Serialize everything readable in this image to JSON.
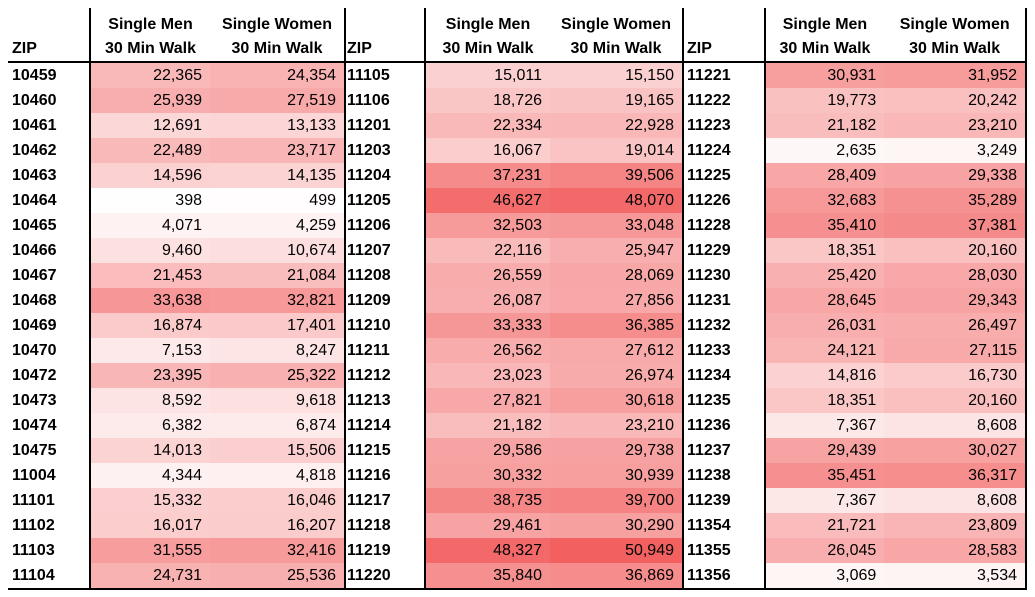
{
  "header": {
    "zip": "ZIP",
    "men_line1": "Single Men",
    "men_line2": "30 Min Walk",
    "women_line1": "Single Women",
    "women_line2": "30 Min Walk"
  },
  "colors": {
    "scale_low": "#ffffff",
    "scale_high": "#f26060"
  },
  "scale_max": 50949,
  "tables": [
    {
      "rows": [
        {
          "zip": "10459",
          "men": "22,365",
          "women": "24,354"
        },
        {
          "zip": "10460",
          "men": "25,939",
          "women": "27,519"
        },
        {
          "zip": "10461",
          "men": "12,691",
          "women": "13,133"
        },
        {
          "zip": "10462",
          "men": "22,489",
          "women": "23,717"
        },
        {
          "zip": "10463",
          "men": "14,596",
          "women": "14,135"
        },
        {
          "zip": "10464",
          "men": "398",
          "women": "499"
        },
        {
          "zip": "10465",
          "men": "4,071",
          "women": "4,259"
        },
        {
          "zip": "10466",
          "men": "9,460",
          "women": "10,674"
        },
        {
          "zip": "10467",
          "men": "21,453",
          "women": "21,084"
        },
        {
          "zip": "10468",
          "men": "33,638",
          "women": "32,821"
        },
        {
          "zip": "10469",
          "men": "16,874",
          "women": "17,401"
        },
        {
          "zip": "10470",
          "men": "7,153",
          "women": "8,247"
        },
        {
          "zip": "10472",
          "men": "23,395",
          "women": "25,322"
        },
        {
          "zip": "10473",
          "men": "8,592",
          "women": "9,618"
        },
        {
          "zip": "10474",
          "men": "6,382",
          "women": "6,874"
        },
        {
          "zip": "10475",
          "men": "14,013",
          "women": "15,506"
        },
        {
          "zip": "11004",
          "men": "4,344",
          "women": "4,818"
        },
        {
          "zip": "11101",
          "men": "15,332",
          "women": "16,046"
        },
        {
          "zip": "11102",
          "men": "16,017",
          "women": "16,207"
        },
        {
          "zip": "11103",
          "men": "31,555",
          "women": "32,416"
        },
        {
          "zip": "11104",
          "men": "24,731",
          "women": "25,536"
        }
      ]
    },
    {
      "rows": [
        {
          "zip": "11105",
          "men": "15,011",
          "women": "15,150"
        },
        {
          "zip": "11106",
          "men": "18,726",
          "women": "19,165"
        },
        {
          "zip": "11201",
          "men": "22,334",
          "women": "22,928"
        },
        {
          "zip": "11203",
          "men": "16,067",
          "women": "19,014"
        },
        {
          "zip": "11204",
          "men": "37,231",
          "women": "39,506"
        },
        {
          "zip": "11205",
          "men": "46,627",
          "women": "48,070"
        },
        {
          "zip": "11206",
          "men": "32,503",
          "women": "33,048"
        },
        {
          "zip": "11207",
          "men": "22,116",
          "women": "25,947"
        },
        {
          "zip": "11208",
          "men": "26,559",
          "women": "28,069"
        },
        {
          "zip": "11209",
          "men": "26,087",
          "women": "27,856"
        },
        {
          "zip": "11210",
          "men": "33,333",
          "women": "36,385"
        },
        {
          "zip": "11211",
          "men": "26,562",
          "women": "27,612"
        },
        {
          "zip": "11212",
          "men": "23,023",
          "women": "26,974"
        },
        {
          "zip": "11213",
          "men": "27,821",
          "women": "30,618"
        },
        {
          "zip": "11214",
          "men": "21,182",
          "women": "23,210"
        },
        {
          "zip": "11215",
          "men": "29,586",
          "women": "29,738"
        },
        {
          "zip": "11216",
          "men": "30,332",
          "women": "30,939"
        },
        {
          "zip": "11217",
          "men": "38,735",
          "women": "39,700"
        },
        {
          "zip": "11218",
          "men": "29,461",
          "women": "30,290"
        },
        {
          "zip": "11219",
          "men": "48,327",
          "women": "50,949"
        },
        {
          "zip": "11220",
          "men": "35,840",
          "women": "36,869"
        }
      ]
    },
    {
      "rows": [
        {
          "zip": "11221",
          "men": "30,931",
          "women": "31,952"
        },
        {
          "zip": "11222",
          "men": "19,773",
          "women": "20,242"
        },
        {
          "zip": "11223",
          "men": "21,182",
          "women": "23,210"
        },
        {
          "zip": "11224",
          "men": "2,635",
          "women": "3,249"
        },
        {
          "zip": "11225",
          "men": "28,409",
          "women": "29,338"
        },
        {
          "zip": "11226",
          "men": "32,683",
          "women": "35,289"
        },
        {
          "zip": "11228",
          "men": "35,410",
          "women": "37,381"
        },
        {
          "zip": "11229",
          "men": "18,351",
          "women": "20,160"
        },
        {
          "zip": "11230",
          "men": "25,420",
          "women": "28,030"
        },
        {
          "zip": "11231",
          "men": "28,645",
          "women": "29,343"
        },
        {
          "zip": "11232",
          "men": "26,031",
          "women": "26,497"
        },
        {
          "zip": "11233",
          "men": "24,121",
          "women": "27,115"
        },
        {
          "zip": "11234",
          "men": "14,816",
          "women": "16,730"
        },
        {
          "zip": "11235",
          "men": "18,351",
          "women": "20,160"
        },
        {
          "zip": "11236",
          "men": "7,367",
          "women": "8,608"
        },
        {
          "zip": "11237",
          "men": "29,439",
          "women": "30,027"
        },
        {
          "zip": "11238",
          "men": "35,451",
          "women": "36,317"
        },
        {
          "zip": "11239",
          "men": "7,367",
          "women": "8,608"
        },
        {
          "zip": "11354",
          "men": "21,721",
          "women": "23,809"
        },
        {
          "zip": "11355",
          "men": "26,045",
          "women": "28,583"
        },
        {
          "zip": "11356",
          "men": "3,069",
          "women": "3,534"
        }
      ]
    }
  ]
}
